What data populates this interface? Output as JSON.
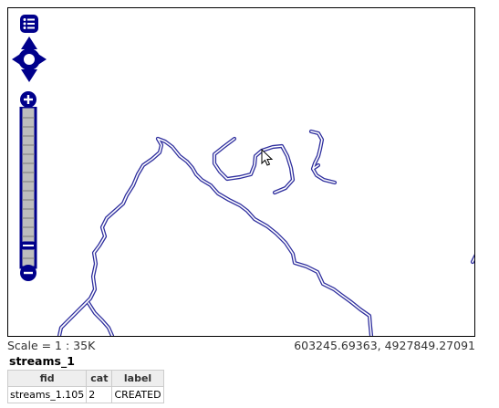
{
  "map": {
    "stream_color": "#2f2f9e",
    "control_color": "#00008b",
    "slider_color": "#bdbdbd"
  },
  "controls": {
    "layer_switcher_icon": "list-icon",
    "pan_icon": "pan-arrows-icon",
    "zoom_in_icon": "plus-icon",
    "zoom_out_icon": "minus-icon"
  },
  "status": {
    "scale": "Scale = 1 : 35K",
    "coordinates": "603245.69363, 4927849.27091"
  },
  "features": {
    "layer_name": "streams_1",
    "columns": [
      "fid",
      "cat",
      "label"
    ],
    "rows": [
      [
        "streams_1.105",
        "2",
        "CREATED"
      ]
    ]
  }
}
